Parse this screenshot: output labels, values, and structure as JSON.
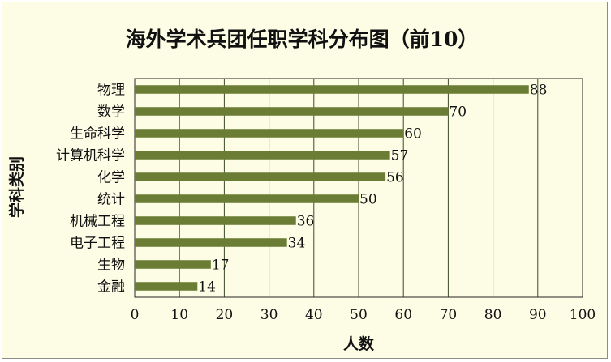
{
  "chart_data": {
    "type": "bar",
    "orientation": "horizontal",
    "title": "海外学术兵团任职学科分布图（前10）",
    "xlabel": "人数",
    "ylabel": "学科类别",
    "categories": [
      "物理",
      "数学",
      "生命科学",
      "计算机科学",
      "化学",
      "统计",
      "机械工程",
      "电子工程",
      "生物",
      "金融"
    ],
    "values": [
      88,
      70,
      60,
      57,
      56,
      50,
      36,
      34,
      17,
      14
    ],
    "xlim": [
      0,
      100
    ],
    "xticks": [
      0,
      10,
      20,
      30,
      40,
      50,
      60,
      70,
      80,
      90,
      100
    ],
    "grid": "vertical",
    "legend": "none",
    "colors": {
      "bar": "#6b7d34",
      "plot_bg": "#fdfde6",
      "grid": "#3d4a26"
    }
  }
}
